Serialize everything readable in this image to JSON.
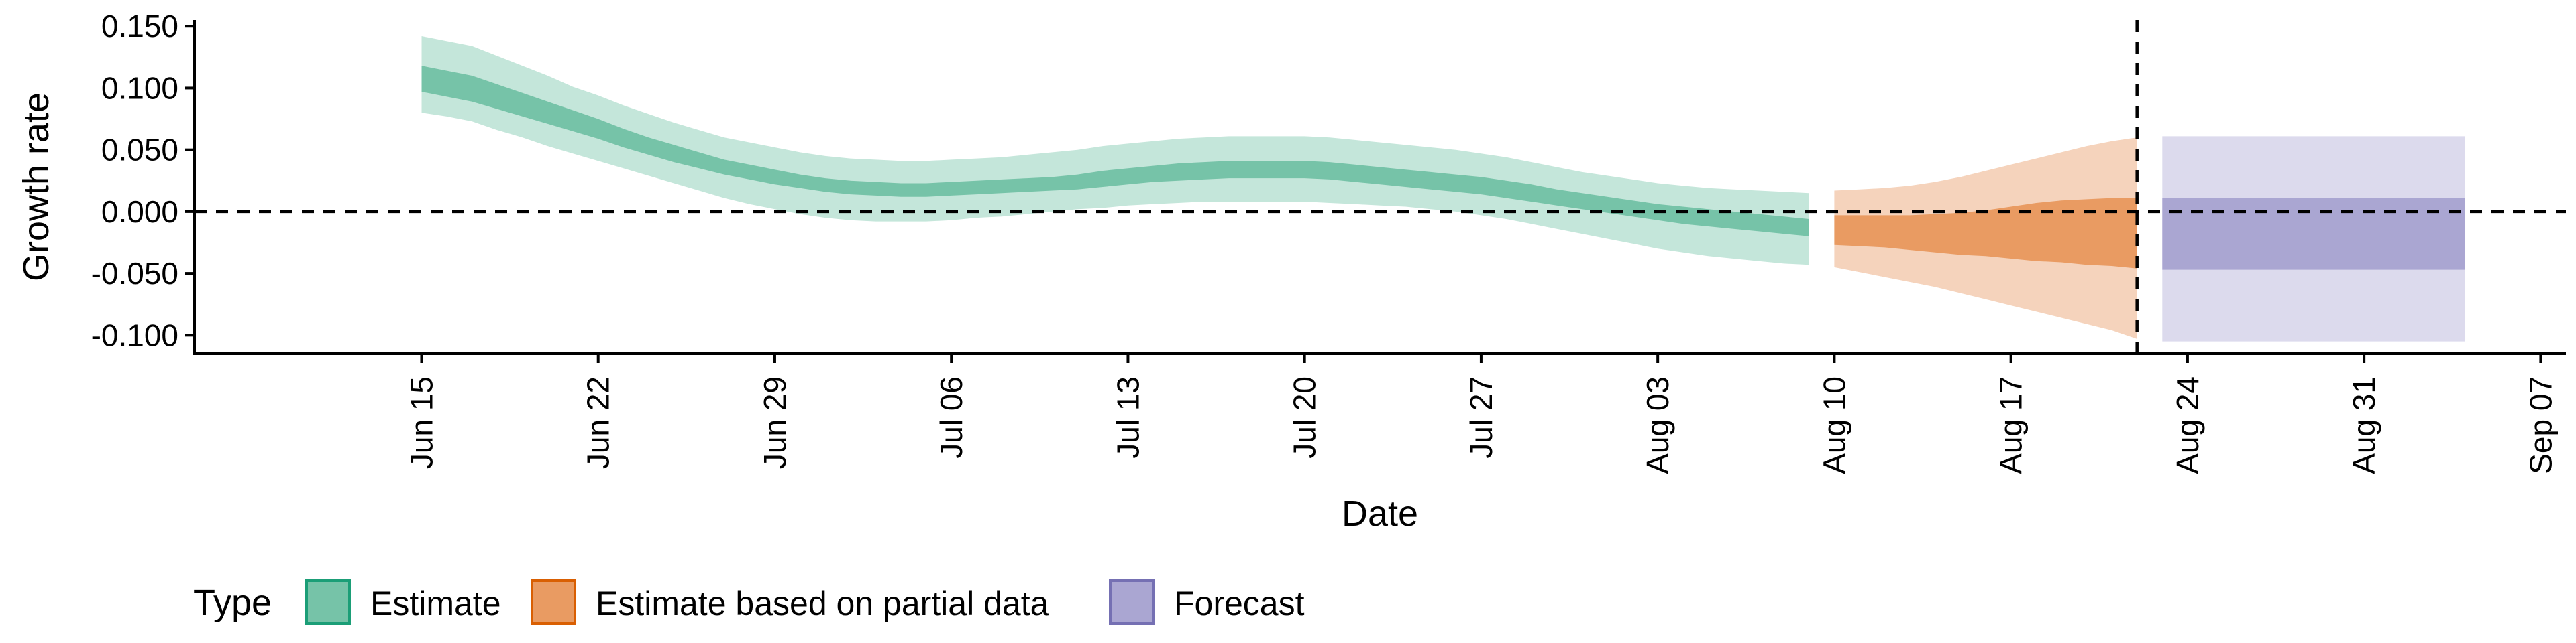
{
  "chart_data": {
    "type": "area",
    "xlabel": "Date",
    "ylabel": "Growth rate",
    "ylim": [
      -0.115,
      0.155
    ],
    "x_range": [
      "2020-06-06",
      "2020-09-08"
    ],
    "y_ticks": [
      {
        "value": 0.15,
        "label": "0.150"
      },
      {
        "value": 0.1,
        "label": "0.100"
      },
      {
        "value": 0.05,
        "label": "0.050"
      },
      {
        "value": 0.0,
        "label": "0.000"
      },
      {
        "value": -0.05,
        "label": "-0.050"
      },
      {
        "value": -0.1,
        "label": "-0.100"
      }
    ],
    "x_ticks": [
      {
        "date": "2020-06-15",
        "label": "Jun 15"
      },
      {
        "date": "2020-06-22",
        "label": "Jun 22"
      },
      {
        "date": "2020-06-29",
        "label": "Jun 29"
      },
      {
        "date": "2020-07-06",
        "label": "Jul 06"
      },
      {
        "date": "2020-07-13",
        "label": "Jul 13"
      },
      {
        "date": "2020-07-20",
        "label": "Jul 20"
      },
      {
        "date": "2020-07-27",
        "label": "Jul 27"
      },
      {
        "date": "2020-08-03",
        "label": "Aug 03"
      },
      {
        "date": "2020-08-10",
        "label": "Aug 10"
      },
      {
        "date": "2020-08-17",
        "label": "Aug 17"
      },
      {
        "date": "2020-08-24",
        "label": "Aug 24"
      },
      {
        "date": "2020-08-31",
        "label": "Aug 31"
      },
      {
        "date": "2020-09-07",
        "label": "Sep 07"
      }
    ],
    "reference_lines": {
      "horizontal_y": 0,
      "vertical_date": "2020-08-22"
    },
    "grid": false,
    "legend": {
      "title": "Type",
      "placement": "bottom-left",
      "entries": [
        {
          "label": "Estimate",
          "fill": "#76c3a8",
          "border": "#1b9e77"
        },
        {
          "label": "Estimate based on partial data",
          "fill": "#e99b62",
          "border": "#d95f02"
        },
        {
          "label": "Forecast",
          "fill": "#aaa6d2",
          "border": "#7570b3"
        }
      ]
    },
    "series": [
      {
        "name": "Estimate",
        "colors": {
          "outer": "#c4e6da",
          "inner": "#76c3a8"
        },
        "dates": [
          "2020-06-15",
          "2020-06-16",
          "2020-06-17",
          "2020-06-18",
          "2020-06-19",
          "2020-06-20",
          "2020-06-21",
          "2020-06-22",
          "2020-06-23",
          "2020-06-24",
          "2020-06-25",
          "2020-06-26",
          "2020-06-27",
          "2020-06-28",
          "2020-06-29",
          "2020-06-30",
          "2020-07-01",
          "2020-07-02",
          "2020-07-03",
          "2020-07-04",
          "2020-07-05",
          "2020-07-06",
          "2020-07-07",
          "2020-07-08",
          "2020-07-09",
          "2020-07-10",
          "2020-07-11",
          "2020-07-12",
          "2020-07-13",
          "2020-07-14",
          "2020-07-15",
          "2020-07-16",
          "2020-07-17",
          "2020-07-18",
          "2020-07-19",
          "2020-07-20",
          "2020-07-21",
          "2020-07-22",
          "2020-07-23",
          "2020-07-24",
          "2020-07-25",
          "2020-07-26",
          "2020-07-27",
          "2020-07-28",
          "2020-07-29",
          "2020-07-30",
          "2020-07-31",
          "2020-08-01",
          "2020-08-02",
          "2020-08-03",
          "2020-08-04",
          "2020-08-05",
          "2020-08-06",
          "2020-08-07",
          "2020-08-08",
          "2020-08-09"
        ],
        "lower90": [
          0.08,
          0.077,
          0.073,
          0.066,
          0.06,
          0.053,
          0.047,
          0.041,
          0.035,
          0.029,
          0.023,
          0.017,
          0.011,
          0.006,
          0.002,
          -0.002,
          -0.005,
          -0.007,
          -0.008,
          -0.008,
          -0.008,
          -0.007,
          -0.005,
          -0.004,
          -0.002,
          0.0,
          0.002,
          0.003,
          0.005,
          0.006,
          0.007,
          0.008,
          0.008,
          0.008,
          0.008,
          0.008,
          0.007,
          0.006,
          0.005,
          0.004,
          0.002,
          0.0,
          -0.003,
          -0.006,
          -0.01,
          -0.014,
          -0.018,
          -0.022,
          -0.026,
          -0.03,
          -0.033,
          -0.036,
          -0.038,
          -0.04,
          -0.042,
          -0.043
        ],
        "lower50": [
          0.097,
          0.093,
          0.089,
          0.083,
          0.077,
          0.071,
          0.065,
          0.059,
          0.052,
          0.046,
          0.04,
          0.035,
          0.03,
          0.026,
          0.022,
          0.019,
          0.016,
          0.014,
          0.013,
          0.012,
          0.012,
          0.013,
          0.014,
          0.015,
          0.016,
          0.017,
          0.018,
          0.02,
          0.022,
          0.024,
          0.025,
          0.026,
          0.027,
          0.027,
          0.027,
          0.027,
          0.026,
          0.024,
          0.022,
          0.02,
          0.018,
          0.016,
          0.014,
          0.011,
          0.008,
          0.005,
          0.002,
          -0.001,
          -0.004,
          -0.007,
          -0.01,
          -0.012,
          -0.014,
          -0.016,
          -0.018,
          -0.02
        ],
        "upper50": [
          0.118,
          0.114,
          0.11,
          0.103,
          0.096,
          0.089,
          0.082,
          0.075,
          0.067,
          0.06,
          0.054,
          0.048,
          0.042,
          0.038,
          0.034,
          0.03,
          0.027,
          0.025,
          0.024,
          0.023,
          0.023,
          0.024,
          0.025,
          0.026,
          0.027,
          0.028,
          0.03,
          0.033,
          0.035,
          0.037,
          0.039,
          0.04,
          0.041,
          0.041,
          0.041,
          0.041,
          0.04,
          0.038,
          0.036,
          0.034,
          0.032,
          0.03,
          0.028,
          0.025,
          0.022,
          0.018,
          0.015,
          0.012,
          0.009,
          0.006,
          0.004,
          0.002,
          0.0,
          -0.002,
          -0.004,
          -0.006
        ],
        "upper90": [
          0.142,
          0.138,
          0.134,
          0.126,
          0.118,
          0.11,
          0.101,
          0.094,
          0.086,
          0.079,
          0.072,
          0.066,
          0.06,
          0.056,
          0.052,
          0.048,
          0.045,
          0.043,
          0.042,
          0.041,
          0.041,
          0.042,
          0.043,
          0.044,
          0.046,
          0.048,
          0.05,
          0.053,
          0.055,
          0.057,
          0.059,
          0.06,
          0.061,
          0.061,
          0.061,
          0.061,
          0.06,
          0.058,
          0.056,
          0.054,
          0.052,
          0.05,
          0.047,
          0.044,
          0.04,
          0.036,
          0.032,
          0.029,
          0.026,
          0.023,
          0.021,
          0.019,
          0.018,
          0.017,
          0.016,
          0.015
        ]
      },
      {
        "name": "Estimate based on partial data",
        "colors": {
          "outer": "#f5d3bc",
          "inner": "#e99b62"
        },
        "dates": [
          "2020-08-10",
          "2020-08-11",
          "2020-08-12",
          "2020-08-13",
          "2020-08-14",
          "2020-08-15",
          "2020-08-16",
          "2020-08-17",
          "2020-08-18",
          "2020-08-19",
          "2020-08-20",
          "2020-08-21",
          "2020-08-22"
        ],
        "lower90": [
          -0.045,
          -0.049,
          -0.053,
          -0.057,
          -0.061,
          -0.066,
          -0.071,
          -0.076,
          -0.081,
          -0.086,
          -0.091,
          -0.096,
          -0.103
        ],
        "lower50": [
          -0.027,
          -0.028,
          -0.029,
          -0.031,
          -0.033,
          -0.035,
          -0.036,
          -0.038,
          -0.04,
          -0.041,
          -0.043,
          -0.044,
          -0.046
        ],
        "upper50": [
          -0.003,
          -0.003,
          -0.003,
          -0.003,
          -0.002,
          -0.001,
          0.001,
          0.004,
          0.007,
          0.009,
          0.01,
          0.011,
          0.011
        ],
        "upper90": [
          0.017,
          0.018,
          0.019,
          0.021,
          0.024,
          0.028,
          0.033,
          0.038,
          0.043,
          0.048,
          0.053,
          0.057,
          0.06
        ]
      },
      {
        "name": "Forecast",
        "colors": {
          "outer": "#dcdaed",
          "inner": "#aaa6d2"
        },
        "dates": [
          "2020-08-23",
          "2020-09-04"
        ],
        "lower90": [
          -0.105,
          -0.105
        ],
        "lower50": [
          -0.047,
          -0.047
        ],
        "upper50": [
          0.011,
          0.011
        ],
        "upper90": [
          0.061,
          0.061
        ]
      }
    ]
  }
}
